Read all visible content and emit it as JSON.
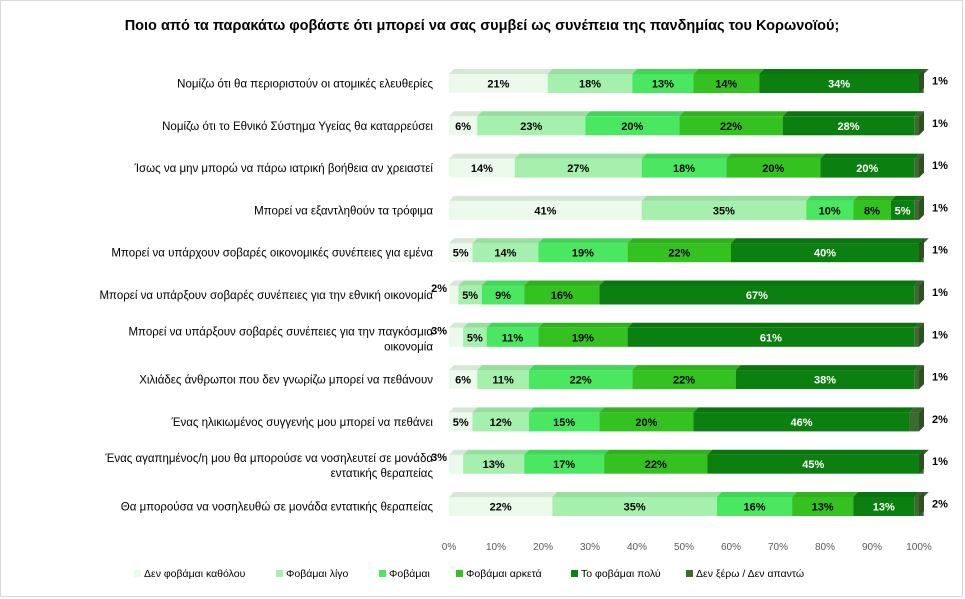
{
  "chart_data": {
    "type": "bar",
    "orientation": "horizontal",
    "stacked": "percent",
    "title": "Ποιο από τα παρακάτω φοβάστε ότι μπορεί να σας συμβεί ως συνέπεια της πανδημίας του Κορωνοϊού;",
    "categories": [
      "Νομίζω ότι θα περιοριστούν οι ατομικές ελευθερίες",
      "Νομίζω ότι το Εθνικό Σύστημα Υγείας θα καταρρεύσει",
      "Ίσως να μην μπορώ να πάρω ιατρική βοήθεια αν χρειαστεί",
      "Μπορεί να εξαντληθούν τα τρόφιμα",
      "Μπορεί να υπάρχουν σοβαρές οικονομικές συνέπειες για εμένα",
      "Μπορεί να υπάρξουν σοβαρές συνέπειες για την εθνική οικονομία",
      "Μπορεί να υπάρξουν σοβαρές συνέπειες για την παγκόσμια οικονομία",
      "Χιλιάδες άνθρωποι που δεν γνωρίζω μπορεί να πεθάνουν",
      "Ένας ηλικιωμένος συγγενής μου μπορεί να πεθάνει",
      "Ένας αγαπημένος/η μου  θα μπορούσε να νοσηλευτεί σε μονάδα εντατικής θεραπείας",
      "Θα μπορούσα να νοσηλευθώ σε μονάδα εντατικής θεραπείας"
    ],
    "series": [
      {
        "name": "Δεν φοβάμαι καθόλου",
        "color": "#ebfaeb",
        "values": [
          21,
          6,
          14,
          41,
          5,
          2,
          3,
          6,
          5,
          3,
          22
        ]
      },
      {
        "name": "Φοβάμαι λίγο",
        "color": "#a6f0ae",
        "values": [
          18,
          23,
          27,
          35,
          14,
          5,
          5,
          11,
          12,
          13,
          35
        ]
      },
      {
        "name": "Φοβάμαι",
        "color": "#49e860",
        "values": [
          13,
          20,
          18,
          10,
          19,
          9,
          11,
          22,
          15,
          17,
          16
        ]
      },
      {
        "name": "Φοβάμαι αρκετά",
        "color": "#33c21f",
        "values": [
          14,
          22,
          20,
          8,
          22,
          16,
          19,
          22,
          20,
          22,
          13
        ]
      },
      {
        "name": "Το φοβάμαι πολύ",
        "color": "#0b7f10",
        "values": [
          34,
          28,
          20,
          5,
          40,
          67,
          61,
          38,
          46,
          45,
          13
        ]
      },
      {
        "name": "Δεν ξέρω / Δεν απαντώ",
        "color": "#3d6a2e",
        "values": [
          1,
          1,
          1,
          1,
          1,
          1,
          1,
          1,
          2,
          1,
          2
        ]
      }
    ],
    "xlim": [
      0,
      100
    ],
    "xticks": [
      "0%",
      "10%",
      "20%",
      "30%",
      "40%",
      "50%",
      "60%",
      "70%",
      "80%",
      "90%",
      "100%"
    ],
    "value_suffix": "%",
    "legend": "bottom",
    "grid": false
  }
}
